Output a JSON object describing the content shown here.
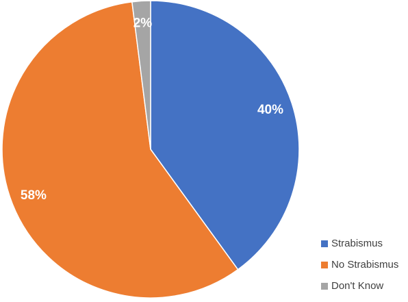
{
  "chart_data": {
    "type": "pie",
    "categories": [
      "Strabismus",
      "No Strabismus",
      "Don't Know"
    ],
    "values": [
      40,
      58,
      2
    ],
    "value_labels": [
      "40%",
      "58%",
      "2%"
    ],
    "colors": [
      "#4472c4",
      "#ed7d31",
      "#a5a5a5"
    ],
    "legend": "bottom-right"
  }
}
